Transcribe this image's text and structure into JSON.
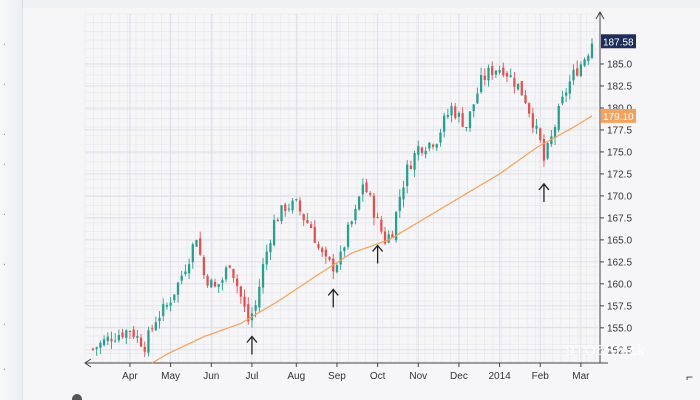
{
  "chart_data": {
    "type": "candlestick",
    "title": "",
    "xlabel": "",
    "ylabel": "",
    "ylim": [
      151,
      190
    ],
    "y_ticks": [
      152.5,
      155.0,
      157.5,
      160.0,
      162.5,
      165.0,
      167.5,
      170.0,
      172.5,
      175.0,
      177.5,
      180.0,
      182.5,
      185.0
    ],
    "x_ticks": [
      {
        "label": "Apr",
        "index": 10
      },
      {
        "label": "May",
        "index": 21
      },
      {
        "label": "Jun",
        "index": 32
      },
      {
        "label": "Jul",
        "index": 43
      },
      {
        "label": "Aug",
        "index": 55
      },
      {
        "label": "Sep",
        "index": 66
      },
      {
        "label": "Oct",
        "index": 77
      },
      {
        "label": "Nov",
        "index": 88
      },
      {
        "label": "Dec",
        "index": 99
      },
      {
        "label": "2014",
        "index": 110
      },
      {
        "label": "Feb",
        "index": 121
      },
      {
        "label": "Mar",
        "index": 132
      }
    ],
    "bar_count": 136,
    "colors": {
      "up": "#2a9d8f",
      "down": "#e05252",
      "ma": "#f4a261",
      "grid": "#dcdde3",
      "axis": "#444444"
    },
    "close_path": [
      [
        0,
        152.6
      ],
      [
        5,
        154.0
      ],
      [
        10,
        154.8
      ],
      [
        14,
        153.0
      ],
      [
        17,
        156.0
      ],
      [
        20,
        157.5
      ],
      [
        23,
        160.0
      ],
      [
        26,
        163.0
      ],
      [
        28,
        165.5
      ],
      [
        30,
        161.0
      ],
      [
        33,
        159.5
      ],
      [
        35,
        160.5
      ],
      [
        37,
        162.5
      ],
      [
        40,
        158.5
      ],
      [
        42,
        155.8
      ],
      [
        44,
        157.5
      ],
      [
        46,
        162.0
      ],
      [
        49,
        167.0
      ],
      [
        52,
        168.8
      ],
      [
        55,
        169.0
      ],
      [
        57,
        167.5
      ],
      [
        59,
        166.5
      ],
      [
        61,
        164.0
      ],
      [
        63,
        162.5
      ],
      [
        65,
        162.0
      ],
      [
        67,
        163.0
      ],
      [
        69,
        166.0
      ],
      [
        71,
        168.0
      ],
      [
        73,
        171.5
      ],
      [
        75,
        169.5
      ],
      [
        77,
        167.0
      ],
      [
        79,
        165.0
      ],
      [
        81,
        166.0
      ],
      [
        83,
        170.0
      ],
      [
        85,
        173.0
      ],
      [
        88,
        175.5
      ],
      [
        91,
        176.0
      ],
      [
        93,
        176.5
      ],
      [
        95,
        178.5
      ],
      [
        97,
        180.0
      ],
      [
        99,
        179.0
      ],
      [
        101,
        178.0
      ],
      [
        103,
        180.5
      ],
      [
        105,
        183.0
      ],
      [
        107,
        184.0
      ],
      [
        109,
        184.5
      ],
      [
        111,
        184.5
      ],
      [
        113,
        183.5
      ],
      [
        115,
        182.5
      ],
      [
        117,
        181.0
      ],
      [
        119,
        178.5
      ],
      [
        121,
        176.0
      ],
      [
        122,
        174.0
      ],
      [
        124,
        176.5
      ],
      [
        126,
        179.5
      ],
      [
        128,
        182.0
      ],
      [
        130,
        183.8
      ],
      [
        132,
        185.0
      ],
      [
        134,
        186.5
      ],
      [
        135,
        187.58
      ]
    ],
    "moving_average": [
      [
        0,
        150.0
      ],
      [
        14,
        150.5
      ],
      [
        20,
        152.0
      ],
      [
        30,
        154.0
      ],
      [
        40,
        155.5
      ],
      [
        50,
        158.0
      ],
      [
        60,
        160.8
      ],
      [
        70,
        163.5
      ],
      [
        80,
        165.0
      ],
      [
        90,
        167.5
      ],
      [
        100,
        170.0
      ],
      [
        110,
        172.5
      ],
      [
        120,
        175.5
      ],
      [
        130,
        177.8
      ],
      [
        135,
        179.1
      ]
    ],
    "last_price": 187.58,
    "last_price_label": "187.58",
    "ma_last_label": "179.10",
    "annotations": [
      {
        "type": "up-arrow",
        "index": 43
      },
      {
        "type": "up-arrow",
        "index": 65
      },
      {
        "type": "up-arrow",
        "index": 77
      },
      {
        "type": "up-arrow",
        "index": 122
      }
    ]
  },
  "watermark": "9TO5Stock"
}
